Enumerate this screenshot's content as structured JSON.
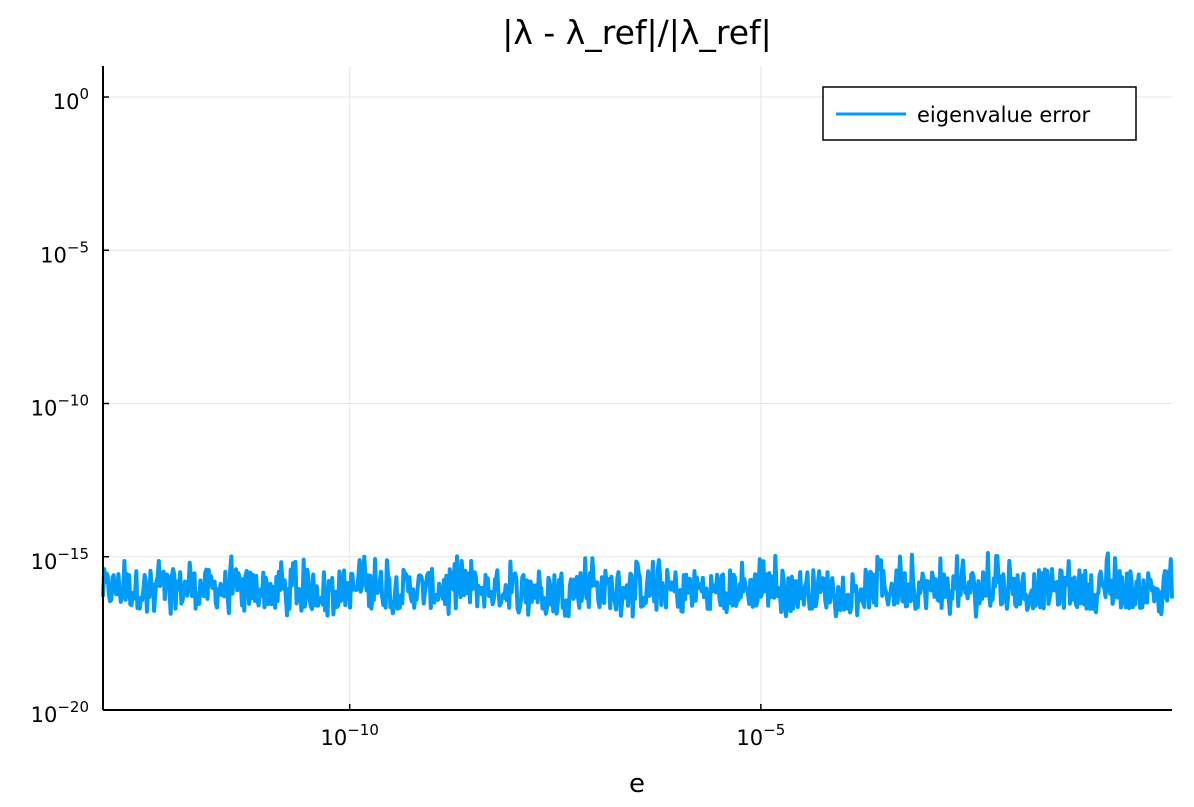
{
  "chart_data": {
    "type": "line",
    "title": "|λ - λ_ref|/|λ_ref|",
    "xlabel": "e",
    "ylabel": "",
    "xscale": "log10",
    "yscale": "log10",
    "xlim": [
      1e-13,
      1.0
    ],
    "ylim": [
      1e-20,
      10
    ],
    "x_ticks": [
      {
        "value": 1e-10,
        "base": "10",
        "exp": "−10"
      },
      {
        "value": 1e-05,
        "base": "10",
        "exp": "−5"
      }
    ],
    "y_ticks": [
      {
        "value": 1,
        "base": "10",
        "exp": "0"
      },
      {
        "value": 1e-05,
        "base": "10",
        "exp": "−5"
      },
      {
        "value": 1e-10,
        "base": "10",
        "exp": "−10"
      },
      {
        "value": 1e-15,
        "base": "10",
        "exp": "−15"
      },
      {
        "value": 1e-20,
        "base": "10",
        "exp": "−20"
      }
    ],
    "grid": true,
    "legend_position": "top-right",
    "series": [
      {
        "name": "eigenvalue error",
        "color": "#009af9",
        "noise_band": {
          "x_range": [
            1e-13,
            1.0
          ],
          "y_low": 1.1e-17,
          "y_high": 1e-15,
          "y_typical": [
            2e-17,
            4e-16
          ]
        }
      }
    ]
  }
}
